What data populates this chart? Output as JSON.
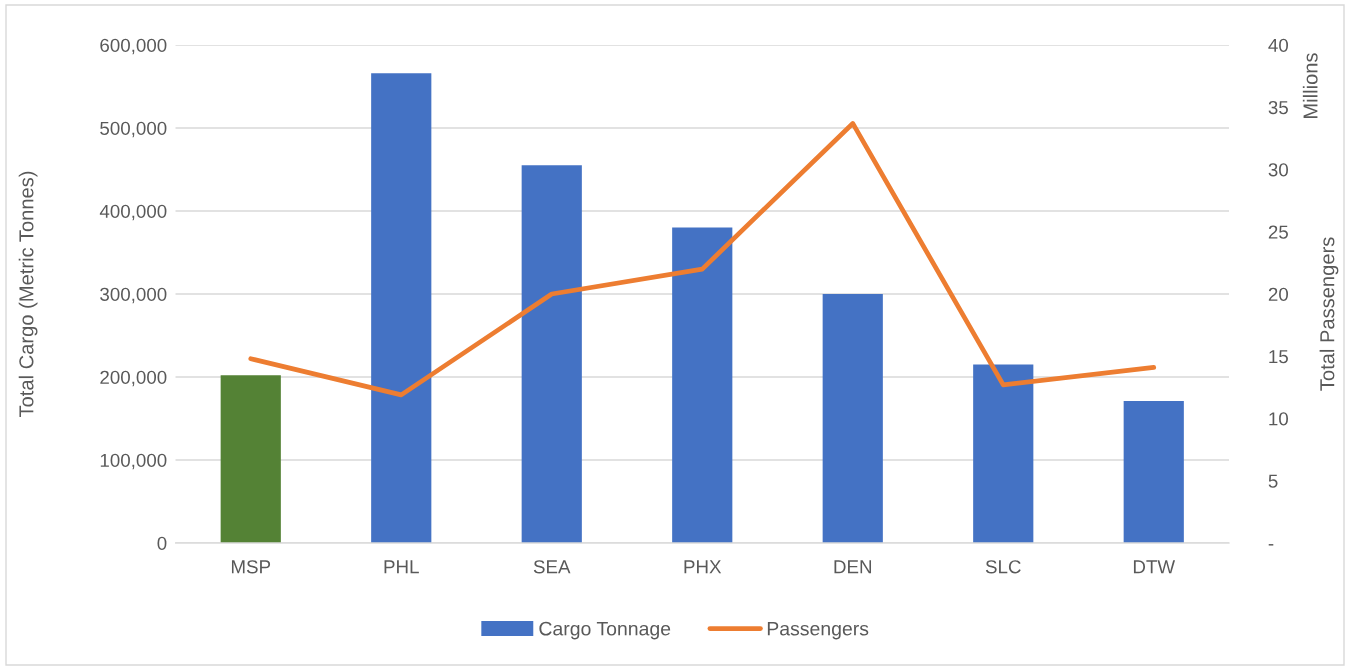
{
  "chart_data": {
    "type": "bar",
    "categories": [
      "MSP",
      "PHL",
      "SEA",
      "PHX",
      "DEN",
      "SLC",
      "DTW"
    ],
    "series": [
      {
        "name": "Cargo Tonnage",
        "color": "#4472c4",
        "colors": [
          "#548235",
          "#4472c4",
          "#4472c4",
          "#4472c4",
          "#4472c4",
          "#4472c4",
          "#4472c4"
        ],
        "values": [
          202000,
          566000,
          455000,
          380000,
          300000,
          215000,
          171000
        ]
      },
      {
        "name": "Passengers",
        "type": "line",
        "axis": "y2",
        "color": "#ed7d31",
        "values": [
          14.8,
          11.9,
          20.0,
          22.0,
          33.7,
          12.7,
          14.1
        ]
      }
    ],
    "ylabel": "Total Cargo (Metric Tonnes)",
    "y2label": "Total Passengers",
    "annotations": [
      "Millions"
    ],
    "ylim": [
      0,
      600000
    ],
    "yticks": [
      0,
      {
        "value": 100000,
        "label": "100,000"
      },
      {
        "value": 200000,
        "label": "200,000"
      },
      {
        "value": 300000,
        "label": "300,000"
      },
      {
        "value": 400000,
        "label": "400,000"
      },
      {
        "value": 500000,
        "label": "500,000"
      },
      {
        "value": 600000,
        "label": "600,000"
      }
    ],
    "y2lim": [
      0,
      40
    ],
    "y2ticks": [
      {
        "value": 0,
        "label": "-"
      },
      5,
      10,
      15,
      20,
      25,
      30,
      35,
      40
    ],
    "grid": "y",
    "legend": "bottom",
    "marker": "none",
    "line_style": "solid"
  }
}
